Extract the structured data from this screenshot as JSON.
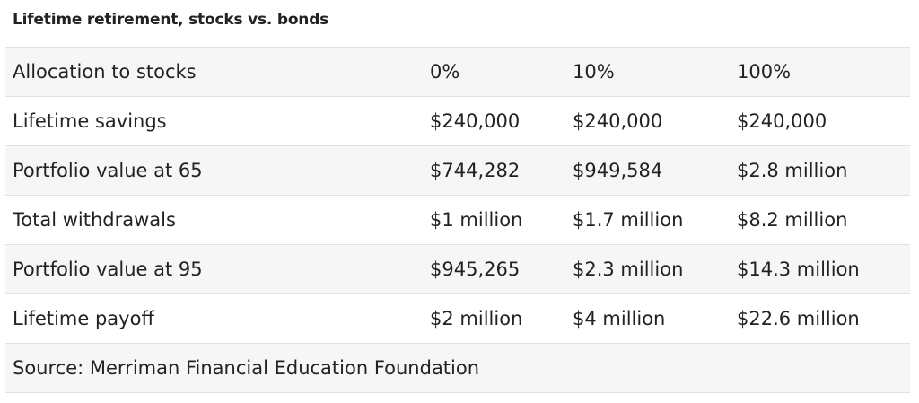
{
  "caption": "Lifetime retirement, stocks vs. bonds",
  "table": {
    "rows": [
      {
        "label": "Allocation to stocks",
        "c1": "0%",
        "c2": "10%",
        "c3": "100%"
      },
      {
        "label": "Lifetime savings",
        "c1": "$240,000",
        "c2": "$240,000",
        "c3": "$240,000"
      },
      {
        "label": "Portfolio value at 65",
        "c1": "$744,282",
        "c2": "$949,584",
        "c3": "$2.8 million"
      },
      {
        "label": "Total withdrawals",
        "c1": "$1 million",
        "c2": "$1.7 million",
        "c3": "$8.2 million"
      },
      {
        "label": "Portfolio value at 95",
        "c1": "$945,265",
        "c2": "$2.3 million",
        "c3": "$14.3 million"
      },
      {
        "label": "Lifetime payoff",
        "c1": "$2 million",
        "c2": "$4 million",
        "c3": "$22.6 million"
      }
    ],
    "source": "Source: Merriman Financial Education Foundation"
  },
  "colors": {
    "text": "#222222",
    "row_shade": "#f6f6f6",
    "border": "#e2e2e2"
  }
}
